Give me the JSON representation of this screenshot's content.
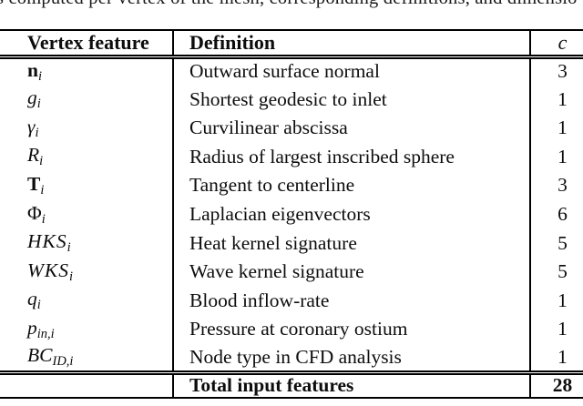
{
  "caption_clipped": "s computed per vertex of the mesh, corresponding definitions, and dimensio",
  "table": {
    "headers": {
      "feature": "Vertex feature",
      "definition": "Definition",
      "c": "c"
    },
    "rows": [
      {
        "sym": "n",
        "sub": "i",
        "definition": "Outward surface normal",
        "c": "3"
      },
      {
        "sym": "g",
        "sub": "i",
        "definition": "Shortest geodesic to inlet",
        "c": "1"
      },
      {
        "sym": "γ",
        "sub": "i",
        "definition": "Curvilinear abscissa",
        "c": "1"
      },
      {
        "sym": "R",
        "sub": "i",
        "definition": "Radius of largest inscribed sphere",
        "c": "1"
      },
      {
        "sym": "T",
        "sub": "i",
        "definition": "Tangent to centerline",
        "c": "3"
      },
      {
        "sym": "Φ",
        "sub": "i",
        "definition": "Laplacian eigenvectors",
        "c": "6"
      },
      {
        "sym": "HKS",
        "sub": "i",
        "definition": "Heat kernel signature",
        "c": "5"
      },
      {
        "sym": "WKS",
        "sub": "i",
        "definition": "Wave kernel signature",
        "c": "5"
      },
      {
        "sym": "q",
        "sub": "i",
        "definition": "Blood inflow-rate",
        "c": "1"
      },
      {
        "sym": "p",
        "sub": "in,i",
        "definition": "Pressure at coronary ostium",
        "c": "1"
      },
      {
        "sym": "BC",
        "sub": "ID,i",
        "definition": "Node type in CFD analysis",
        "c": "1"
      }
    ],
    "total": {
      "label": "Total input features",
      "c": "28"
    }
  }
}
